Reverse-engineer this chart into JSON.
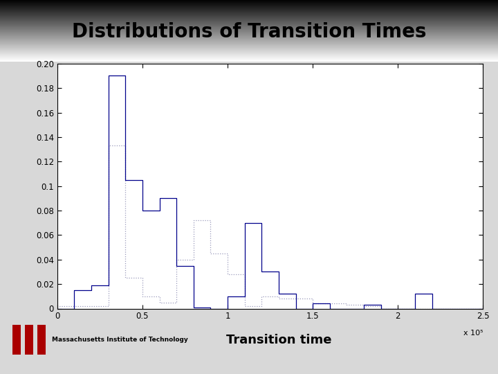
{
  "title": "Distributions of Transition Times",
  "xlabel": "Transition time",
  "xlim": [
    0,
    250000
  ],
  "ylim": [
    0,
    0.2
  ],
  "xticks": [
    0,
    50000,
    100000,
    150000,
    200000,
    250000
  ],
  "xticklabels": [
    "0",
    "0.5",
    "1",
    "1.5",
    "2",
    "2.5"
  ],
  "x_exponent_label": "x 10⁵",
  "yticks": [
    0,
    0.02,
    0.04,
    0.06,
    0.08,
    0.1,
    0.12,
    0.14,
    0.16,
    0.18,
    0.2
  ],
  "hist1_color": "#00008B",
  "hist2_color": "#9999BB",
  "title_color": "#000000",
  "title_fontsize": 20,
  "title_fontweight": "bold",
  "hist1_bins": [
    0,
    10000,
    20000,
    30000,
    40000,
    50000,
    60000,
    70000,
    80000,
    90000,
    100000,
    110000,
    120000,
    130000,
    140000,
    150000,
    160000,
    170000,
    180000,
    190000,
    200000,
    210000,
    220000,
    230000,
    240000,
    250000
  ],
  "hist1_vals": [
    0.0,
    0.015,
    0.019,
    0.19,
    0.105,
    0.08,
    0.09,
    0.035,
    0.001,
    0.0,
    0.01,
    0.07,
    0.03,
    0.012,
    0.0,
    0.004,
    0.0,
    0.0,
    0.003,
    0.0,
    0.0,
    0.012,
    0.0,
    0.0,
    0.0
  ],
  "hist2_bins": [
    0,
    10000,
    20000,
    30000,
    40000,
    50000,
    60000,
    70000,
    80000,
    90000,
    100000,
    110000,
    120000,
    130000,
    140000,
    150000,
    160000,
    170000,
    180000,
    190000,
    200000,
    210000,
    220000,
    230000,
    240000,
    250000
  ],
  "hist2_vals": [
    0.002,
    0.002,
    0.002,
    0.133,
    0.025,
    0.01,
    0.005,
    0.04,
    0.072,
    0.045,
    0.028,
    0.002,
    0.01,
    0.008,
    0.008,
    0.004,
    0.004,
    0.003,
    0.002,
    0.0,
    0.0,
    0.0,
    0.0,
    0.0,
    0.0
  ],
  "mit_text": "Massachusetts Institute of Technology",
  "mit_text_fontsize": 6.5,
  "transit_text_fontsize": 13,
  "title_bg_colors": [
    "#aaaaaa",
    "#cccccc",
    "#e0e0e0",
    "#f0f0f0"
  ],
  "plot_area_bg": "#ffffff",
  "fig_bg": "#d8d8d8"
}
